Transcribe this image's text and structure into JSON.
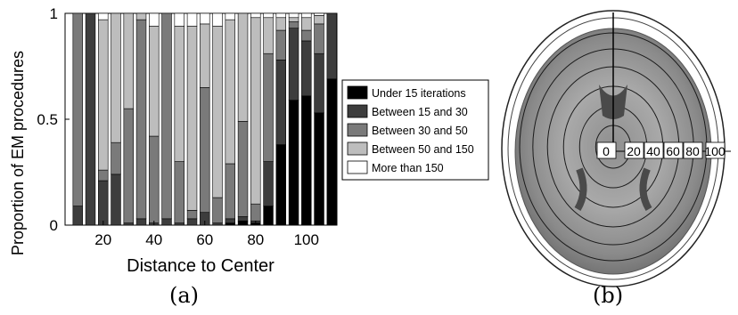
{
  "chart_data": [
    {
      "type": "bar",
      "stacked": true,
      "ylabel": "Proportion of EM procedures",
      "xlabel": "Distance to Center",
      "ylim": [
        0,
        1
      ],
      "xlim": [
        5,
        112
      ],
      "xticks": [
        20,
        40,
        60,
        80,
        100
      ],
      "yticks": [
        0,
        0.5,
        1
      ],
      "ytick_labels": [
        "0",
        "0.5",
        "1"
      ],
      "legend_placement": "right",
      "x": [
        10,
        15,
        20,
        25,
        30,
        35,
        40,
        45,
        50,
        55,
        60,
        65,
        70,
        75,
        80,
        85,
        90,
        95,
        100,
        105,
        110
      ],
      "series": [
        {
          "name": "Under 15 iterations",
          "color": "#000000",
          "values": [
            0,
            0,
            0,
            0,
            0,
            0,
            0,
            0,
            0,
            0,
            0,
            0,
            0.01,
            0.02,
            0.01,
            0.09,
            0.38,
            0.59,
            0.61,
            0.53,
            0.69
          ]
        },
        {
          "name": "Between 15 and 30",
          "color": "#3d3d3d",
          "values": [
            0.09,
            1.0,
            0.21,
            0.24,
            0.01,
            0.03,
            0.01,
            0.03,
            0.01,
            0.03,
            0.06,
            0.01,
            0.02,
            0.02,
            0.01,
            0.21,
            0.4,
            0.34,
            0.26,
            0.28,
            0.31
          ]
        },
        {
          "name": "Between 30 and 50",
          "color": "#7a7a7a",
          "values": [
            0.91,
            0,
            0.05,
            0.15,
            0.54,
            0.94,
            0.41,
            0.97,
            0.29,
            0.04,
            0.59,
            0.12,
            0.26,
            0.45,
            0.08,
            0.51,
            0.14,
            0.03,
            0.05,
            0.14,
            0
          ]
        },
        {
          "name": "Between 50 and 150",
          "color": "#bdbdbd",
          "values": [
            0,
            0,
            0.71,
            0.61,
            0.45,
            0.03,
            0.52,
            0,
            0.64,
            0.87,
            0.3,
            0.81,
            0.68,
            0.51,
            0.88,
            0.17,
            0.06,
            0.02,
            0.06,
            0.04,
            0
          ]
        },
        {
          "name": "More than 150",
          "color": "#ffffff",
          "values": [
            0,
            0,
            0.03,
            0,
            0,
            0,
            0.06,
            0,
            0.06,
            0.06,
            0.05,
            0.06,
            0.03,
            0,
            0.02,
            0.02,
            0.02,
            0.02,
            0.02,
            0.01,
            0
          ]
        }
      ]
    },
    {
      "type": "other",
      "kind": "polar-overlay-brain-scan",
      "ring_labels": [
        "0",
        "20",
        "40",
        "60",
        "80",
        "100"
      ]
    }
  ],
  "captions": {
    "a": "(a)",
    "b": "(b)"
  }
}
